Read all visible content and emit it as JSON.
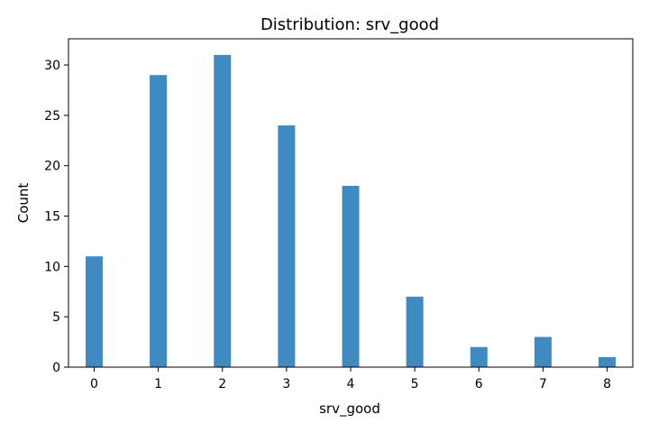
{
  "chart_data": {
    "type": "bar",
    "title": "Distribution: srv_good",
    "xlabel": "srv_good",
    "ylabel": "Count",
    "categories": [
      0,
      1,
      2,
      3,
      4,
      5,
      6,
      7,
      8
    ],
    "values": [
      11,
      29,
      31,
      24,
      18,
      7,
      2,
      3,
      1
    ],
    "xlim": [
      -0.4,
      8.4
    ],
    "ylim": [
      0,
      32.6
    ],
    "xticks": [
      0,
      1,
      2,
      3,
      4,
      5,
      6,
      7,
      8
    ],
    "yticks": [
      0,
      5,
      10,
      15,
      20,
      25,
      30
    ],
    "grid": false,
    "bar_color": "#3f8bc1"
  }
}
